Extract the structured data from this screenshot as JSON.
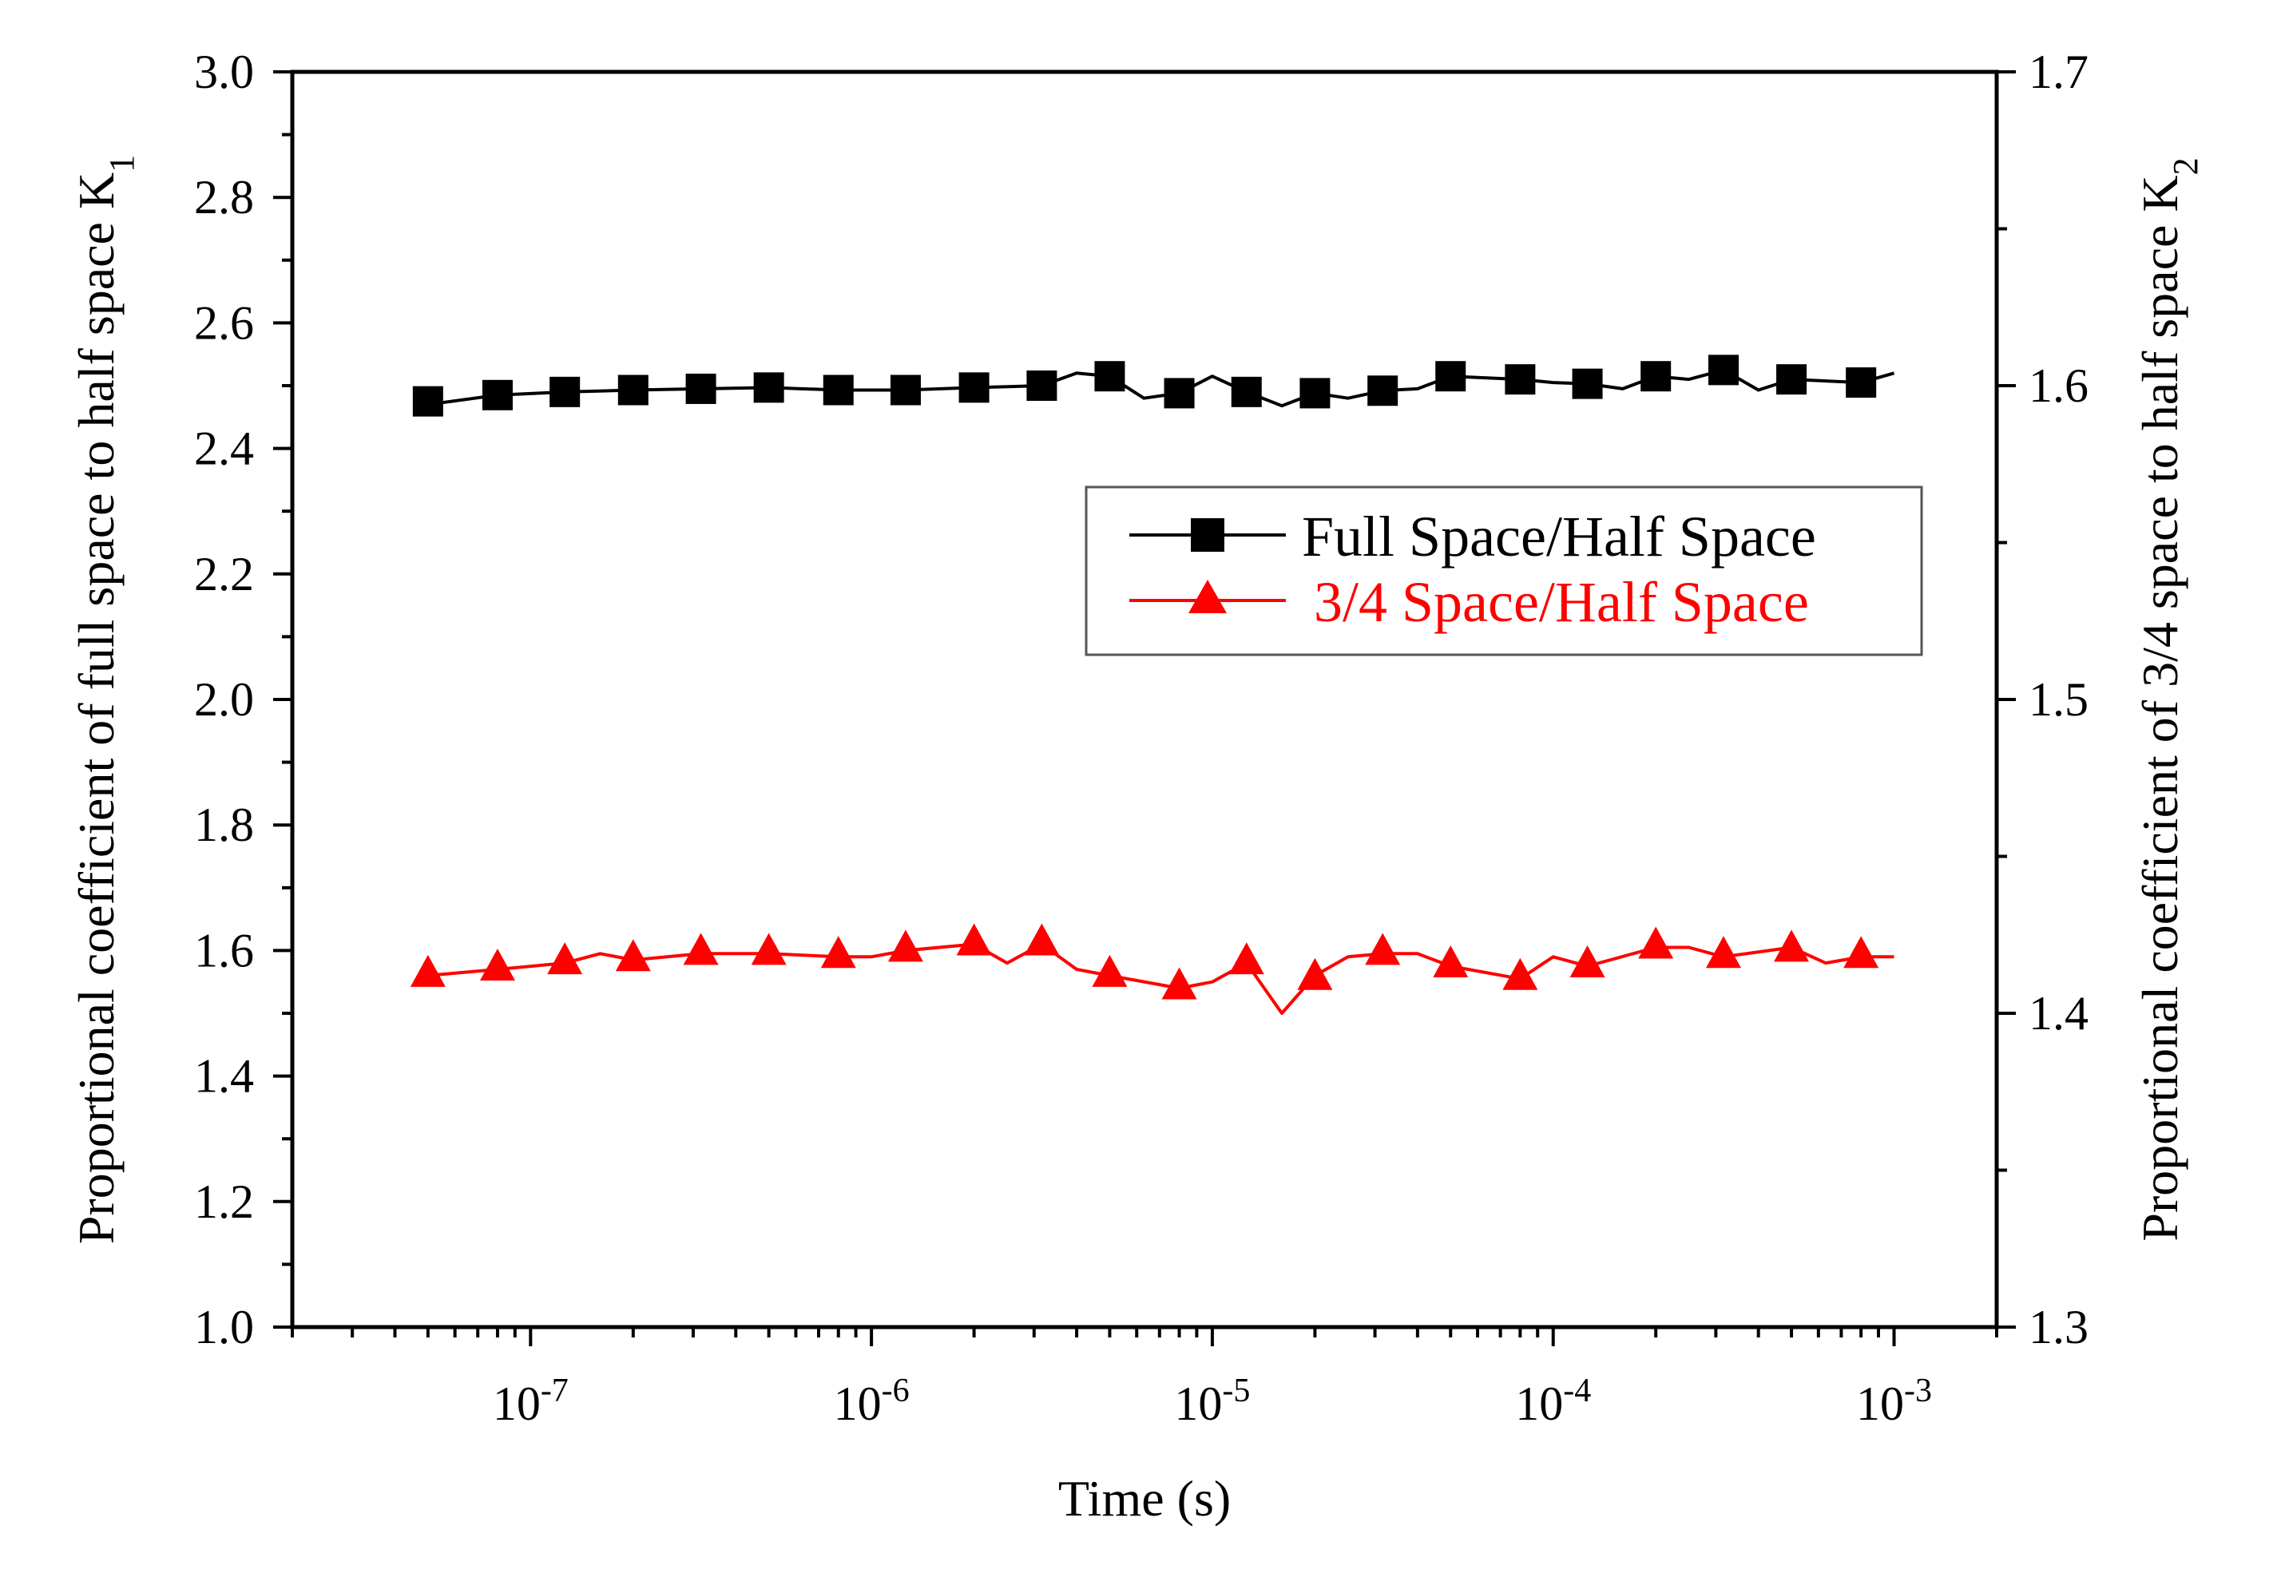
{
  "chart_data": {
    "type": "line",
    "title": "",
    "xlabel": "Time (s)",
    "ylabel_left": "Proportional coefficient of full space to half space K",
    "ylabel_left_sub": "1",
    "ylabel_right": "Proportional coefficient of 3/4 space to half space K",
    "ylabel_right_sub": "2",
    "x_scale": "log",
    "xlim": [
      2e-08,
      0.002
    ],
    "ylim_left": [
      1.0,
      3.0
    ],
    "ylim_right": [
      1.3,
      1.7
    ],
    "x_ticks": [
      {
        "value": 1e-07,
        "base": "10",
        "exp": "-7"
      },
      {
        "value": 1e-06,
        "base": "10",
        "exp": "-6"
      },
      {
        "value": 1e-05,
        "base": "10",
        "exp": "-5"
      },
      {
        "value": 0.0001,
        "base": "10",
        "exp": "-4"
      },
      {
        "value": 0.001,
        "base": "10",
        "exp": "-3"
      }
    ],
    "y_ticks_left": [
      "1.0",
      "1.2",
      "1.4",
      "1.6",
      "1.8",
      "2.0",
      "2.2",
      "2.4",
      "2.6",
      "2.8",
      "3.0"
    ],
    "y_ticks_right": [
      "1.3",
      "1.4",
      "1.5",
      "1.6",
      "1.7"
    ],
    "legend_position": "center-right",
    "series": [
      {
        "name": "Full Space/Half Space",
        "axis": "left",
        "color": "#000000",
        "marker": "square",
        "line_x": [
          5e-08,
          8e-08,
          1.26e-07,
          2e-07,
          3.16e-07,
          5e-07,
          8e-07,
          1.26e-06,
          2e-06,
          3.16e-06,
          4e-06,
          5e-06,
          6.3e-06,
          8e-06,
          1e-05,
          1.26e-05,
          1.6e-05,
          2e-05,
          2.5e-05,
          3.16e-05,
          4e-05,
          5e-05,
          8e-05,
          0.0001,
          0.000126,
          0.00016,
          0.0002,
          0.00025,
          0.000316,
          0.0004,
          0.0005,
          0.0008,
          0.001
        ],
        "line_y": [
          2.47,
          2.485,
          2.49,
          2.493,
          2.495,
          2.497,
          2.493,
          2.493,
          2.497,
          2.5,
          2.52,
          2.515,
          2.48,
          2.488,
          2.515,
          2.49,
          2.468,
          2.488,
          2.48,
          2.492,
          2.495,
          2.515,
          2.51,
          2.505,
          2.503,
          2.495,
          2.515,
          2.51,
          2.525,
          2.493,
          2.51,
          2.505,
          2.52
        ],
        "marker_x": [
          5e-08,
          8e-08,
          1.26e-07,
          2e-07,
          3.16e-07,
          5e-07,
          8e-07,
          1.26e-06,
          2e-06,
          3.16e-06,
          5e-06,
          8e-06,
          1.26e-05,
          2e-05,
          3.16e-05,
          5e-05,
          8e-05,
          0.000126,
          0.0002,
          0.000316,
          0.0005,
          0.0008
        ],
        "marker_y": [
          2.475,
          2.485,
          2.49,
          2.493,
          2.495,
          2.497,
          2.493,
          2.493,
          2.497,
          2.5,
          2.515,
          2.488,
          2.49,
          2.488,
          2.492,
          2.515,
          2.51,
          2.503,
          2.515,
          2.525,
          2.51,
          2.505
        ]
      },
      {
        "name": "3/4 Space/Half Space",
        "axis": "right",
        "color": "#ff0000",
        "marker": "triangle",
        "line_x": [
          5e-08,
          8e-08,
          1.26e-07,
          1.6e-07,
          2e-07,
          3.16e-07,
          5e-07,
          8e-07,
          1e-06,
          1.26e-06,
          2e-06,
          2.5e-06,
          3.16e-06,
          4e-06,
          5e-06,
          8e-06,
          1e-05,
          1.26e-05,
          1.6e-05,
          2e-05,
          2.5e-05,
          3.16e-05,
          4e-05,
          5e-05,
          8e-05,
          0.0001,
          0.000126,
          0.0002,
          0.00025,
          0.000316,
          0.0005,
          0.00063,
          0.0008,
          0.001
        ],
        "line_y": [
          1.412,
          1.414,
          1.416,
          1.419,
          1.417,
          1.419,
          1.419,
          1.418,
          1.418,
          1.42,
          1.422,
          1.416,
          1.422,
          1.414,
          1.412,
          1.408,
          1.41,
          1.416,
          1.4,
          1.412,
          1.418,
          1.419,
          1.419,
          1.415,
          1.411,
          1.418,
          1.415,
          1.421,
          1.421,
          1.418,
          1.421,
          1.416,
          1.418,
          1.418
        ],
        "marker_x": [
          5e-08,
          8e-08,
          1.26e-07,
          2e-07,
          3.16e-07,
          5e-07,
          8e-07,
          1.26e-06,
          2e-06,
          3.16e-06,
          5e-06,
          8e-06,
          1.26e-05,
          2e-05,
          3.16e-05,
          5e-05,
          8e-05,
          0.000126,
          0.0002,
          0.000316,
          0.0005,
          0.0008
        ],
        "marker_y": [
          1.412,
          1.414,
          1.416,
          1.417,
          1.419,
          1.419,
          1.418,
          1.42,
          1.422,
          1.422,
          1.412,
          1.408,
          1.416,
          1.411,
          1.419,
          1.415,
          1.411,
          1.415,
          1.421,
          1.418,
          1.42,
          1.418
        ]
      }
    ]
  }
}
